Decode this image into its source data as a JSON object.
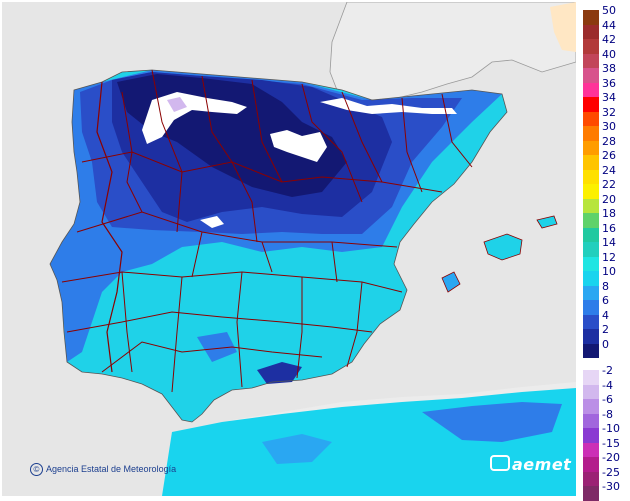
{
  "legend": {
    "positive": [
      {
        "label": "50",
        "color": "#8b3a0f"
      },
      {
        "label": "44",
        "color": "#9b2c2c"
      },
      {
        "label": "42",
        "color": "#b23a3a"
      },
      {
        "label": "40",
        "color": "#c2455a"
      },
      {
        "label": "38",
        "color": "#d8538c"
      },
      {
        "label": "36",
        "color": "#ff3399"
      },
      {
        "label": "34",
        "color": "#ff0000"
      },
      {
        "label": "32",
        "color": "#ff4a00"
      },
      {
        "label": "30",
        "color": "#ff7b00"
      },
      {
        "label": "28",
        "color": "#ff9c00"
      },
      {
        "label": "26",
        "color": "#ffc400"
      },
      {
        "label": "24",
        "color": "#ffe000"
      },
      {
        "label": "22",
        "color": "#fcf000"
      },
      {
        "label": "20",
        "color": "#b7e53c"
      },
      {
        "label": "18",
        "color": "#5fd26a"
      },
      {
        "label": "16",
        "color": "#21c9a0"
      },
      {
        "label": "14",
        "color": "#22cfbd"
      },
      {
        "label": "12",
        "color": "#1fe5e2"
      },
      {
        "label": "10",
        "color": "#19d4ee"
      },
      {
        "label": "8",
        "color": "#2aa7f2"
      },
      {
        "label": "6",
        "color": "#2e7de9"
      },
      {
        "label": "4",
        "color": "#2a4ec8"
      },
      {
        "label": "2",
        "color": "#1d2fa2"
      },
      {
        "label": "0",
        "color": "#131873"
      }
    ],
    "negative": [
      {
        "label": "-2",
        "color": "#e6d6f5"
      },
      {
        "label": "-4",
        "color": "#d2b8ee"
      },
      {
        "label": "-6",
        "color": "#bb8fe6"
      },
      {
        "label": "-8",
        "color": "#a166dd"
      },
      {
        "label": "-10",
        "color": "#8a3ad2"
      },
      {
        "label": "-15",
        "color": "#cc2fb6"
      },
      {
        "label": "-20",
        "color": "#b31d8c"
      },
      {
        "label": "-25",
        "color": "#9b2274"
      },
      {
        "label": "-30",
        "color": "#7e2a66"
      }
    ]
  },
  "credit": "Agencia Estatal de Meteorología",
  "brand": "aemet",
  "colors": {
    "sea": "#e9e9e9",
    "land_outside": "#e9e9e9",
    "border": "#8b0000",
    "snow": "#ffffff"
  }
}
